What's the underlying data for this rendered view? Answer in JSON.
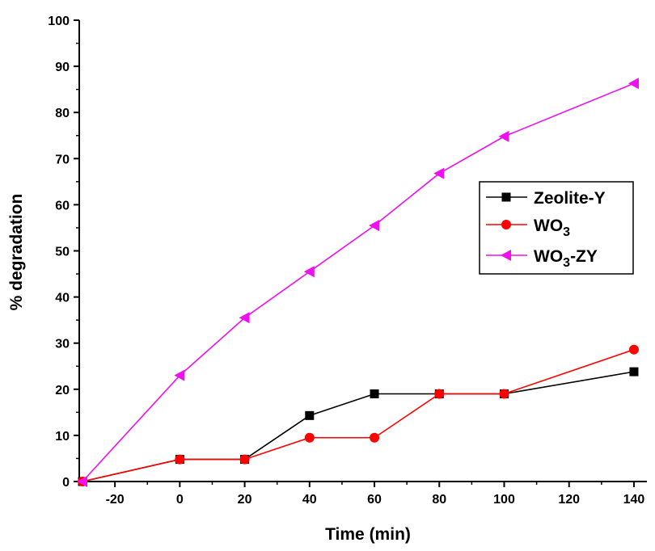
{
  "chart_data": {
    "type": "line",
    "xlabel": "Time (min)",
    "ylabel": "% degradation",
    "xlim": [
      -31,
      144
    ],
    "ylim": [
      0,
      100
    ],
    "xticks": [
      -20,
      0,
      20,
      40,
      60,
      80,
      100,
      120,
      140
    ],
    "yticks": [
      0,
      10,
      20,
      30,
      40,
      50,
      60,
      70,
      80,
      90,
      100
    ],
    "grid": false,
    "legend_position": "center-right",
    "x": [
      -30,
      0,
      20,
      40,
      60,
      80,
      100,
      140
    ],
    "series": [
      {
        "name": "Zeolite-Y",
        "legend": {
          "main": "Zeolite-Y",
          "sub": "",
          "tail": ""
        },
        "color": "#000000",
        "marker": "square",
        "values": [
          0,
          4.8,
          4.8,
          14.3,
          19.0,
          19.0,
          19.0,
          23.8
        ]
      },
      {
        "name": "WO3",
        "legend": {
          "main": "WO",
          "sub": "3",
          "tail": ""
        },
        "color": "#ff0000",
        "marker": "circle",
        "values": [
          0,
          4.8,
          4.8,
          9.5,
          9.5,
          19.0,
          19.0,
          28.6
        ]
      },
      {
        "name": "WO3-ZY",
        "legend": {
          "main": "WO",
          "sub": "3",
          "tail": "-ZY"
        },
        "color": "#ee10ee",
        "marker": "triangle-left",
        "values": [
          0,
          23.0,
          35.5,
          45.5,
          55.5,
          66.8,
          74.8,
          86.3
        ]
      }
    ]
  }
}
